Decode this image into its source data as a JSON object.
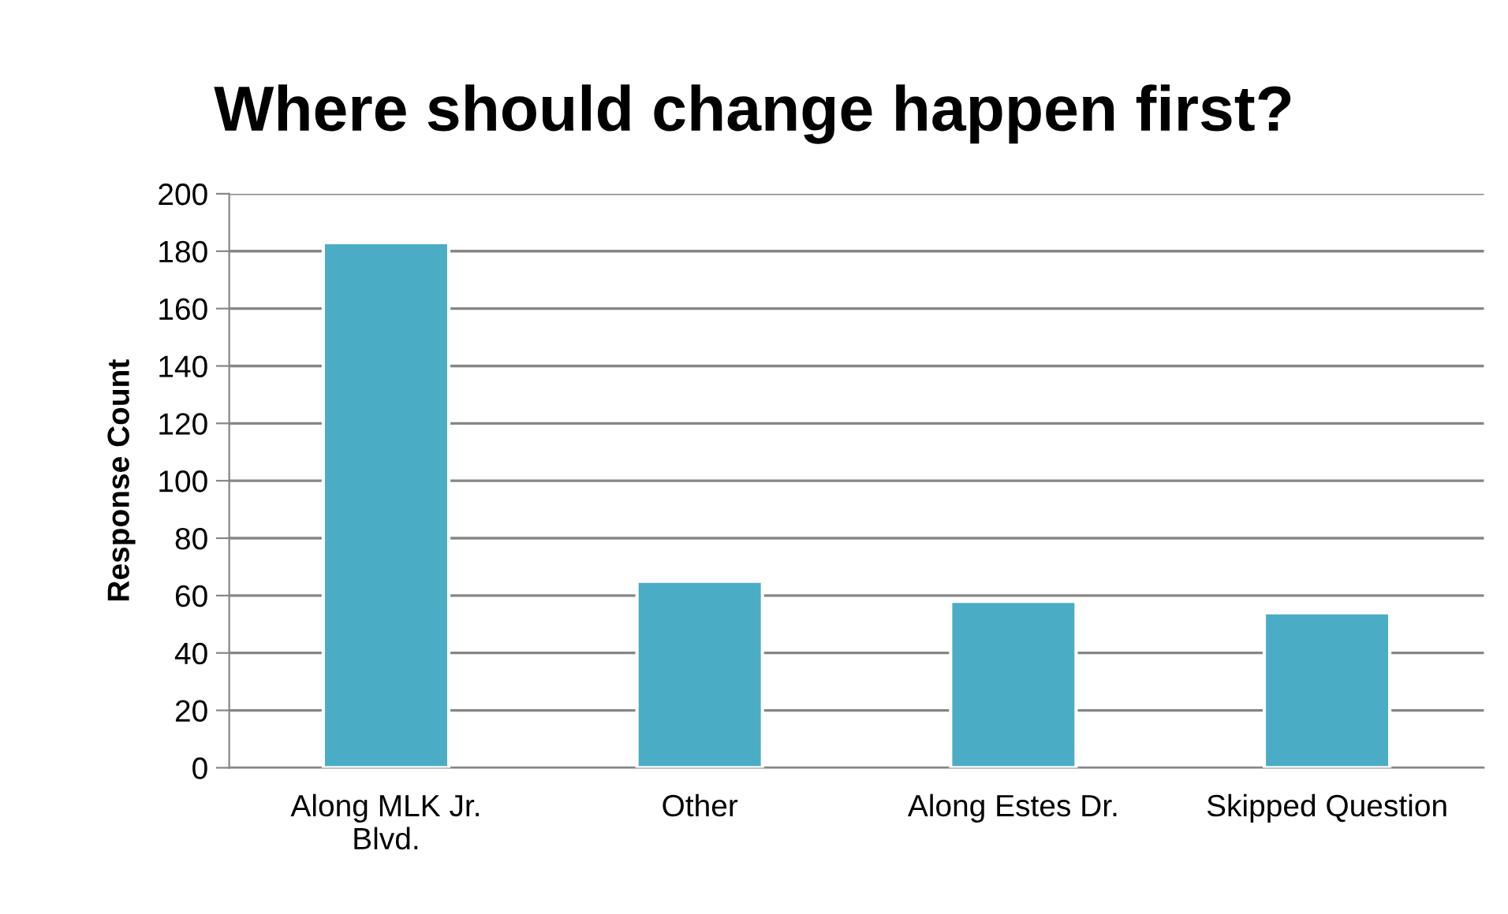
{
  "chart_data": {
    "type": "bar",
    "title": "Where should change happen first?",
    "ylabel": "Response Count",
    "categories": [
      "Along MLK Jr.\nBlvd.",
      "Other",
      "Along Estes Dr.",
      "Skipped Question"
    ],
    "values": [
      183,
      65,
      58,
      54
    ],
    "color": "#4bacc6",
    "ylim": [
      0,
      200
    ],
    "yticks": [
      0,
      20,
      40,
      60,
      80,
      100,
      120,
      140,
      160,
      180,
      200
    ],
    "grid": "y"
  }
}
